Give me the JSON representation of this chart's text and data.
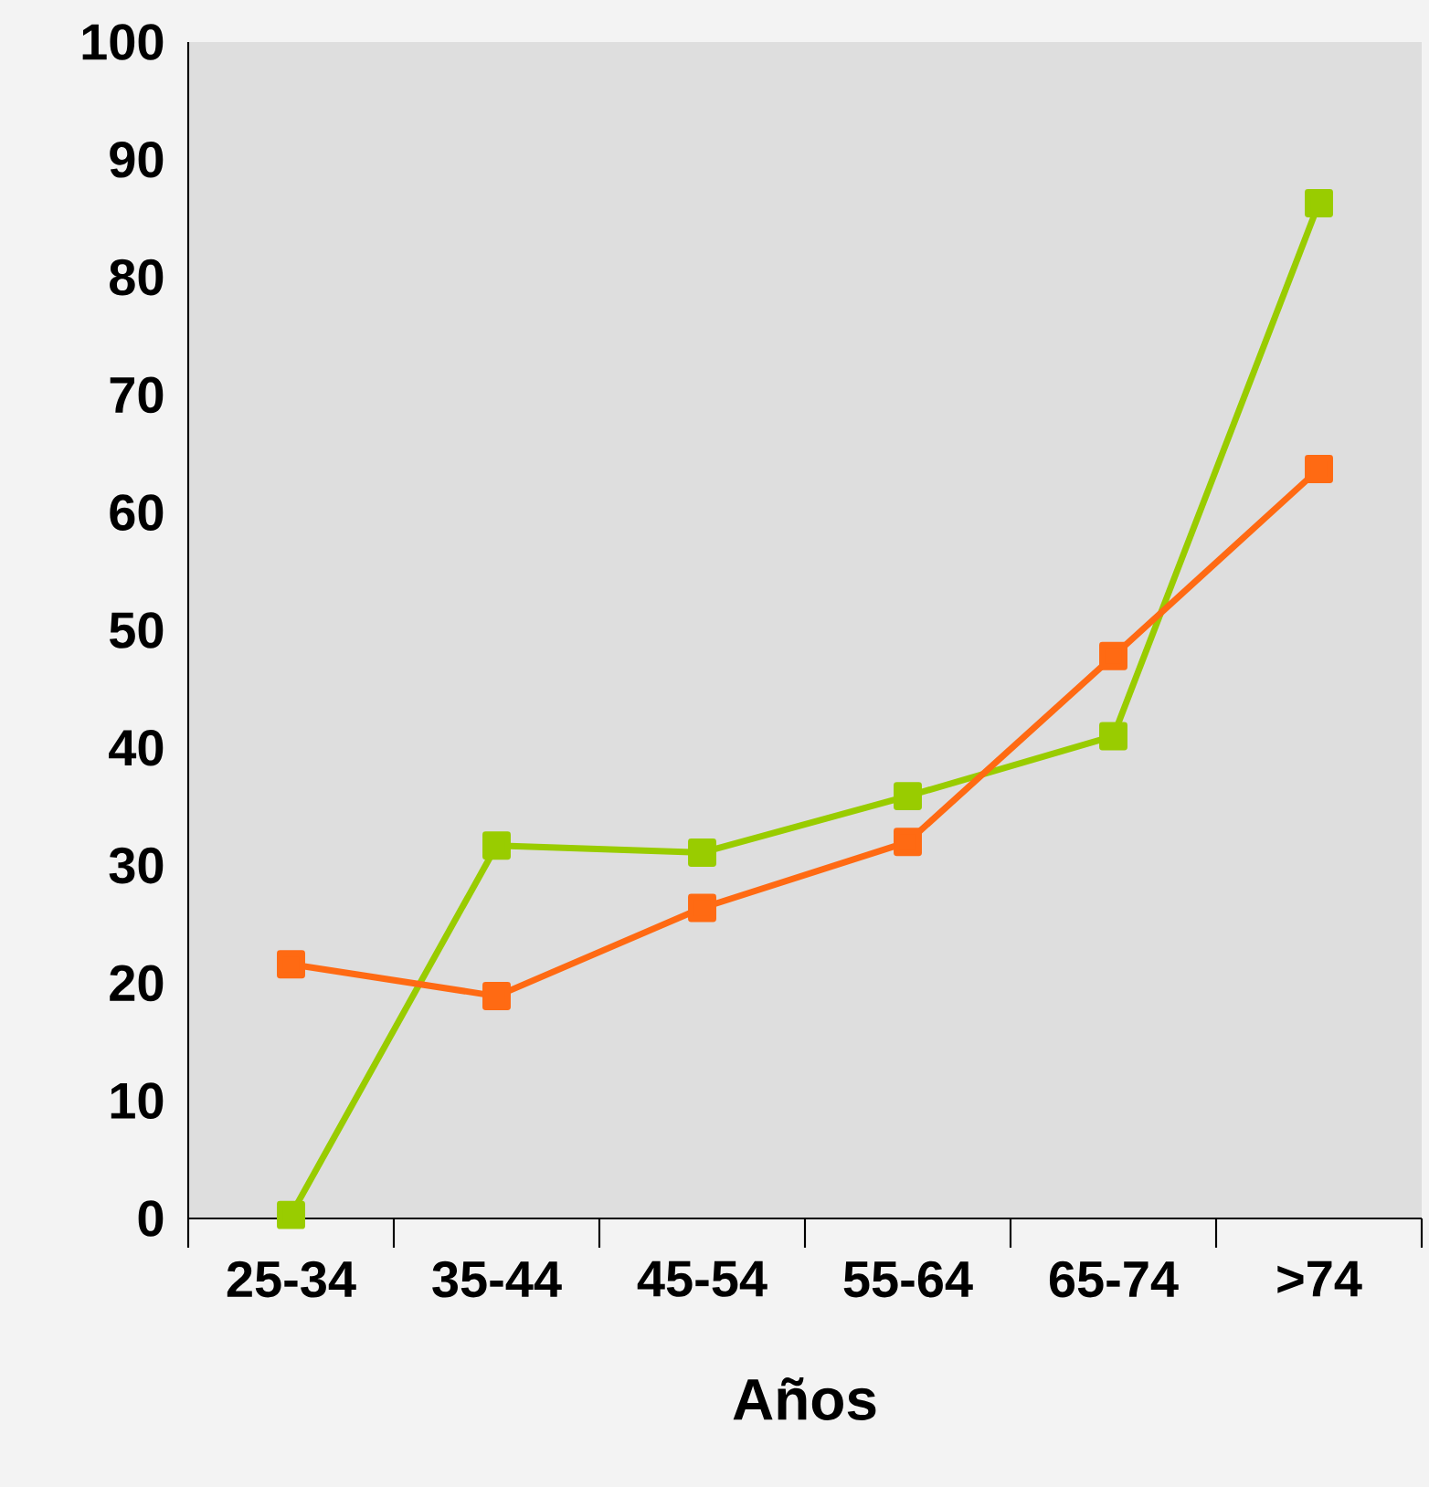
{
  "chart_data": {
    "type": "line",
    "xlabel": "Años",
    "categories": [
      "25-34",
      "35-44",
      "45-54",
      "55-64",
      "65-74",
      ">74"
    ],
    "series": [
      {
        "color": "#99cc00",
        "values": [
          0.3,
          31.7,
          31.1,
          35.9,
          41.0,
          86.3
        ]
      },
      {
        "color": "#ff6a13",
        "values": [
          21.6,
          18.9,
          26.4,
          32.0,
          47.8,
          63.7
        ]
      }
    ],
    "ylim": [
      0,
      100
    ],
    "yticks": [
      0,
      10,
      20,
      30,
      40,
      50,
      60,
      70,
      80,
      90,
      100
    ],
    "marker": "square",
    "line_style": "solid",
    "grid": false
  }
}
